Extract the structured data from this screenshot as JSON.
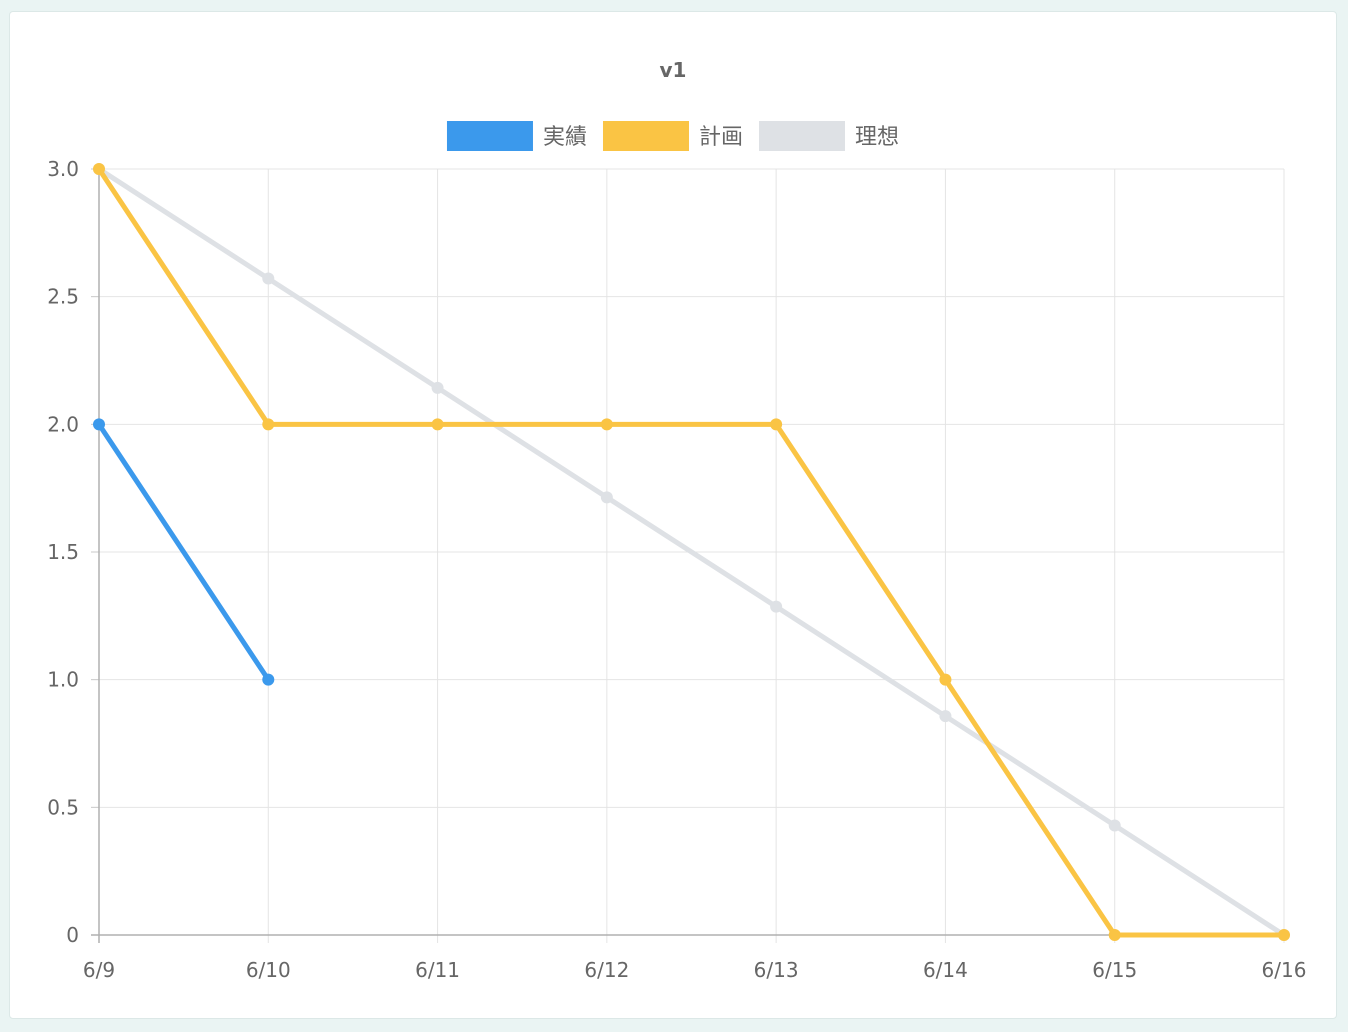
{
  "chart_data": {
    "type": "line",
    "title": "v1",
    "legend_position": "top",
    "grid": true,
    "categories": [
      "6/9",
      "6/10",
      "6/11",
      "6/12",
      "6/13",
      "6/14",
      "6/15",
      "6/16"
    ],
    "y_ticks": [
      "0",
      "0.5",
      "1.0",
      "1.5",
      "2.0",
      "2.5",
      "3.0"
    ],
    "ylim": [
      0,
      3
    ],
    "series": [
      {
        "name": "実績",
        "color": "#3b99ec",
        "values": [
          2,
          1,
          null,
          null,
          null,
          null,
          null,
          null
        ]
      },
      {
        "name": "計画",
        "color": "#fac444",
        "values": [
          3,
          2,
          2,
          2,
          2,
          1,
          0,
          0
        ]
      },
      {
        "name": "理想",
        "color": "#dee1e5",
        "values": [
          3,
          2.571,
          2.143,
          1.714,
          1.286,
          0.857,
          0.429,
          0
        ]
      }
    ]
  }
}
